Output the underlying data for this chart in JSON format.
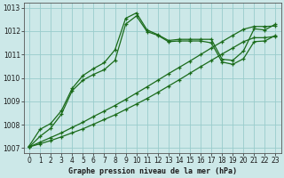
{
  "title": "Graphe pression niveau de la mer (hPa)",
  "xlim": [
    -0.5,
    23.5
  ],
  "ylim": [
    1006.8,
    1013.2
  ],
  "xticks": [
    0,
    1,
    2,
    3,
    4,
    5,
    6,
    7,
    8,
    9,
    10,
    11,
    12,
    13,
    14,
    15,
    16,
    17,
    18,
    19,
    20,
    21,
    22,
    23
  ],
  "yticks": [
    1007,
    1008,
    1009,
    1010,
    1011,
    1012,
    1013
  ],
  "background_color": "#cce8e8",
  "grid_color": "#99cccc",
  "line_color": "#1a6b1a",
  "series1_x": [
    0,
    1,
    2,
    3,
    4,
    5,
    6,
    7,
    8,
    9,
    10,
    11,
    12,
    13,
    14,
    15,
    16,
    17,
    18,
    19,
    20,
    21,
    22,
    23
  ],
  "series1_y": [
    1007.1,
    1007.8,
    1008.05,
    1008.6,
    1009.55,
    1010.1,
    1010.4,
    1010.65,
    1011.2,
    1012.55,
    1012.78,
    1012.05,
    1011.85,
    1011.6,
    1011.65,
    1011.65,
    1011.65,
    1011.65,
    1010.8,
    1010.75,
    1011.15,
    1012.1,
    1012.05,
    1012.3
  ],
  "series2_x": [
    0,
    1,
    2,
    3,
    4,
    5,
    6,
    7,
    8,
    9,
    10,
    11,
    12,
    13,
    14,
    15,
    16,
    17,
    18,
    19,
    20,
    21,
    22,
    23
  ],
  "series2_y": [
    1007.05,
    1007.5,
    1007.85,
    1008.45,
    1009.45,
    1009.9,
    1010.15,
    1010.35,
    1010.75,
    1012.3,
    1012.65,
    1011.98,
    1011.82,
    1011.55,
    1011.58,
    1011.58,
    1011.58,
    1011.5,
    1010.68,
    1010.58,
    1010.82,
    1011.55,
    1011.58,
    1011.82
  ],
  "series3_x": [
    0,
    1,
    2,
    3,
    4,
    5,
    6,
    7,
    8,
    9,
    10,
    11,
    12,
    13,
    14,
    15,
    16,
    17,
    18,
    19,
    20,
    21,
    22,
    23
  ],
  "series3_y": [
    1007.05,
    1007.25,
    1007.45,
    1007.65,
    1007.88,
    1008.1,
    1008.35,
    1008.58,
    1008.82,
    1009.08,
    1009.35,
    1009.62,
    1009.9,
    1010.18,
    1010.45,
    1010.72,
    1011.0,
    1011.28,
    1011.55,
    1011.82,
    1012.08,
    1012.2,
    1012.2,
    1012.22
  ],
  "series4_x": [
    0,
    1,
    2,
    3,
    4,
    5,
    6,
    7,
    8,
    9,
    10,
    11,
    12,
    13,
    14,
    15,
    16,
    17,
    18,
    19,
    20,
    21,
    22,
    23
  ],
  "series4_y": [
    1007.05,
    1007.18,
    1007.32,
    1007.48,
    1007.65,
    1007.82,
    1008.02,
    1008.22,
    1008.42,
    1008.65,
    1008.88,
    1009.12,
    1009.38,
    1009.65,
    1009.92,
    1010.2,
    1010.48,
    1010.75,
    1011.02,
    1011.28,
    1011.55,
    1011.72,
    1011.72,
    1011.78
  ],
  "marker": "+",
  "markersize": 3.5,
  "linewidth": 0.9,
  "tick_fontsize": 5.5,
  "label_fontsize": 6.0
}
